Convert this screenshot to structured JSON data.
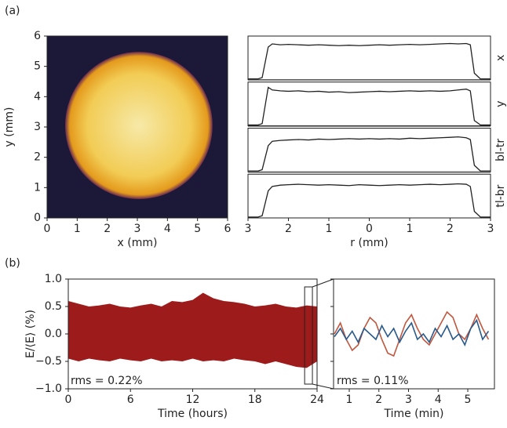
{
  "panel_labels": [
    "(a)",
    "(b)"
  ],
  "chart_data": [
    {
      "type": "heatmap",
      "xlabel": "x (mm)",
      "ylabel": "y (mm)",
      "xlim": [
        0,
        6
      ],
      "ylim": [
        0,
        6
      ],
      "xticks": [
        0,
        1,
        2,
        3,
        4,
        5,
        6
      ],
      "yticks": [
        0,
        1,
        2,
        3,
        4,
        5,
        6
      ],
      "center_x": 3.05,
      "center_y": 3.05,
      "radius": 2.45,
      "background": "#1c1838",
      "colors": [
        "#f6e9a8",
        "#f2cc55",
        "#e49a1c",
        "#6a2a50"
      ]
    },
    {
      "type": "line",
      "xlabel": "r (mm)",
      "xlim": [
        -3,
        3
      ],
      "ylim": [
        0,
        1
      ],
      "xticks": [
        {
          "value": -3,
          "label": "3"
        },
        {
          "value": -2,
          "label": "2"
        },
        {
          "value": -1,
          "label": "1"
        },
        0,
        1,
        2,
        3
      ],
      "x": [
        -3,
        -2.75,
        -2.65,
        -2.5,
        -2.4,
        -2.2,
        -2,
        -1.75,
        -1.5,
        -1.25,
        -1,
        -0.75,
        -0.5,
        -0.25,
        0,
        0.25,
        0.5,
        0.75,
        1,
        1.25,
        1.5,
        1.75,
        2,
        2.2,
        2.4,
        2.5,
        2.6,
        2.75,
        3
      ],
      "series": [
        {
          "name": "x",
          "color": "#222222",
          "values": [
            0.02,
            0.02,
            0.05,
            0.75,
            0.82,
            0.8,
            0.81,
            0.8,
            0.79,
            0.8,
            0.79,
            0.78,
            0.79,
            0.78,
            0.79,
            0.8,
            0.79,
            0.8,
            0.81,
            0.8,
            0.81,
            0.82,
            0.83,
            0.82,
            0.83,
            0.8,
            0.15,
            0.02,
            0.02
          ]
        },
        {
          "name": "y",
          "color": "#222222",
          "values": [
            0.02,
            0.02,
            0.05,
            0.88,
            0.82,
            0.8,
            0.79,
            0.8,
            0.78,
            0.79,
            0.77,
            0.78,
            0.76,
            0.77,
            0.78,
            0.79,
            0.78,
            0.79,
            0.8,
            0.79,
            0.8,
            0.79,
            0.8,
            0.82,
            0.84,
            0.8,
            0.12,
            0.02,
            0.02
          ]
        },
        {
          "name": "bl-tr",
          "color": "#222222",
          "values": [
            0.02,
            0.02,
            0.05,
            0.6,
            0.7,
            0.72,
            0.73,
            0.74,
            0.73,
            0.75,
            0.74,
            0.75,
            0.76,
            0.75,
            0.76,
            0.75,
            0.76,
            0.75,
            0.77,
            0.76,
            0.77,
            0.78,
            0.79,
            0.8,
            0.78,
            0.74,
            0.15,
            0.02,
            0.02
          ]
        },
        {
          "name": "tl-br",
          "color": "#222222",
          "values": [
            0.02,
            0.02,
            0.05,
            0.62,
            0.72,
            0.75,
            0.76,
            0.77,
            0.76,
            0.75,
            0.76,
            0.75,
            0.74,
            0.76,
            0.75,
            0.74,
            0.75,
            0.76,
            0.75,
            0.76,
            0.77,
            0.76,
            0.77,
            0.78,
            0.77,
            0.72,
            0.15,
            0.02,
            0.02
          ]
        }
      ]
    },
    {
      "type": "band",
      "xlabel": "Time (hours)",
      "ylabel": "E/⟨E⟩ (%)",
      "xlim": [
        0,
        24
      ],
      "ylim": [
        -1,
        1
      ],
      "xticks": [
        0,
        6,
        12,
        18,
        24
      ],
      "yticks": [
        {
          "value": -1,
          "label": "−1.0"
        },
        {
          "value": -0.5,
          "label": "−0.5"
        },
        {
          "value": 0,
          "label": "0.0"
        },
        {
          "value": 0.5,
          "label": "0.5"
        },
        {
          "value": 1,
          "label": "1.0"
        }
      ],
      "color": "#9e1b1b",
      "annotation": "rms = 0.22%",
      "window": [
        22.8,
        23.55
      ],
      "x": [
        0,
        1,
        2,
        3,
        4,
        5,
        6,
        7,
        8,
        9,
        10,
        11,
        12,
        13,
        14,
        15,
        16,
        17,
        18,
        19,
        20,
        21,
        22,
        23,
        24
      ],
      "upper": [
        0.6,
        0.55,
        0.5,
        0.52,
        0.55,
        0.5,
        0.48,
        0.52,
        0.55,
        0.5,
        0.6,
        0.58,
        0.62,
        0.75,
        0.65,
        0.6,
        0.58,
        0.55,
        0.5,
        0.52,
        0.55,
        0.5,
        0.48,
        0.52,
        0.5
      ],
      "lower": [
        -0.45,
        -0.5,
        -0.45,
        -0.48,
        -0.5,
        -0.45,
        -0.48,
        -0.5,
        -0.45,
        -0.5,
        -0.48,
        -0.5,
        -0.45,
        -0.5,
        -0.48,
        -0.5,
        -0.45,
        -0.48,
        -0.5,
        -0.55,
        -0.5,
        -0.55,
        -0.6,
        -0.62,
        -0.5
      ]
    },
    {
      "type": "line",
      "xlabel": "Time (min)",
      "xlim": [
        0.47,
        5.9
      ],
      "ylim": [
        -1,
        1
      ],
      "xticks": [
        1,
        2,
        3,
        4,
        5
      ],
      "yticks": [
        -1,
        -0.5,
        0,
        0.5,
        1
      ],
      "annotation": "rms = 0.11%",
      "annotation_color": "#2a5a8c",
      "x": [
        0.5,
        0.7,
        0.9,
        1.1,
        1.3,
        1.5,
        1.7,
        1.9,
        2.1,
        2.3,
        2.5,
        2.7,
        2.9,
        3.1,
        3.3,
        3.5,
        3.7,
        3.9,
        4.1,
        4.3,
        4.5,
        4.7,
        4.9,
        5.1,
        5.3,
        5.5,
        5.7
      ],
      "series": [
        {
          "color": "#c0573f",
          "values": [
            0.0,
            0.2,
            -0.1,
            -0.3,
            -0.2,
            0.1,
            0.3,
            0.2,
            -0.1,
            -0.35,
            -0.4,
            -0.1,
            0.2,
            0.35,
            0.1,
            -0.1,
            -0.2,
            0.0,
            0.2,
            0.4,
            0.3,
            0.0,
            -0.1,
            0.1,
            0.35,
            0.1,
            -0.1
          ]
        },
        {
          "color": "#2a5a8c",
          "values": [
            -0.05,
            0.1,
            -0.1,
            0.05,
            -0.15,
            0.1,
            0.0,
            -0.1,
            0.15,
            -0.05,
            0.1,
            -0.15,
            0.05,
            0.2,
            -0.1,
            0.0,
            -0.15,
            0.1,
            -0.05,
            0.15,
            -0.1,
            0.0,
            -0.2,
            0.1,
            0.25,
            -0.1,
            0.05
          ]
        }
      ]
    }
  ]
}
